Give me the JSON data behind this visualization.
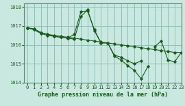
{
  "title": "Graphe pression niveau de la mer (hPa)",
  "bg_color": "#c8e8e0",
  "grid_color": "#88b8b0",
  "line_color": "#1a5c1a",
  "xlim": [
    -0.5,
    23
  ],
  "ylim": [
    1014,
    1018.2
  ],
  "yticks": [
    1014,
    1015,
    1016,
    1017,
    1018
  ],
  "xticks": [
    0,
    1,
    2,
    3,
    4,
    5,
    6,
    7,
    8,
    9,
    10,
    11,
    12,
    13,
    14,
    15,
    16,
    17,
    18,
    19,
    20,
    21,
    22,
    23
  ],
  "series": [
    {
      "x": [
        0,
        1,
        2,
        3,
        4,
        5,
        6,
        7,
        8,
        9,
        10,
        11,
        12,
        13,
        14,
        15,
        16,
        17,
        18,
        19,
        20,
        21,
        22,
        23
      ],
      "y": [
        1016.9,
        1016.85,
        1016.65,
        1016.55,
        1016.5,
        1016.45,
        1016.4,
        1016.35,
        1016.3,
        1016.25,
        1016.2,
        1016.15,
        1016.1,
        1016.05,
        1016.0,
        1015.95,
        1015.9,
        1015.85,
        1015.8,
        1015.75,
        1015.7,
        1015.65,
        1015.6,
        1015.6
      ]
    },
    {
      "x": [
        0,
        1,
        2,
        3,
        4,
        5,
        6,
        7,
        8,
        9,
        10,
        11,
        12,
        13,
        14,
        15,
        16,
        17
      ],
      "y": [
        1016.9,
        1016.8,
        1016.65,
        1016.55,
        1016.45,
        1016.4,
        1016.35,
        1016.55,
        1017.75,
        1017.8,
        1016.8,
        1016.1,
        1016.1,
        1015.45,
        1015.35,
        1015.15,
        1015.0,
        1015.15
      ]
    },
    {
      "x": [
        0,
        1,
        2,
        3,
        4,
        5,
        6,
        7,
        8,
        9,
        10,
        11,
        12,
        13,
        14,
        15,
        16,
        17,
        18
      ],
      "y": [
        1016.9,
        1016.8,
        1016.6,
        1016.5,
        1016.45,
        1016.4,
        1016.35,
        1016.3,
        1017.5,
        1017.85,
        1016.75,
        1016.1,
        1016.1,
        1015.4,
        1015.2,
        1014.9,
        1014.65,
        1014.2,
        1014.85
      ]
    },
    {
      "x": [
        19,
        20,
        21,
        22,
        23
      ],
      "y": [
        1015.9,
        1016.2,
        1015.2,
        1015.1,
        1015.6
      ]
    }
  ]
}
